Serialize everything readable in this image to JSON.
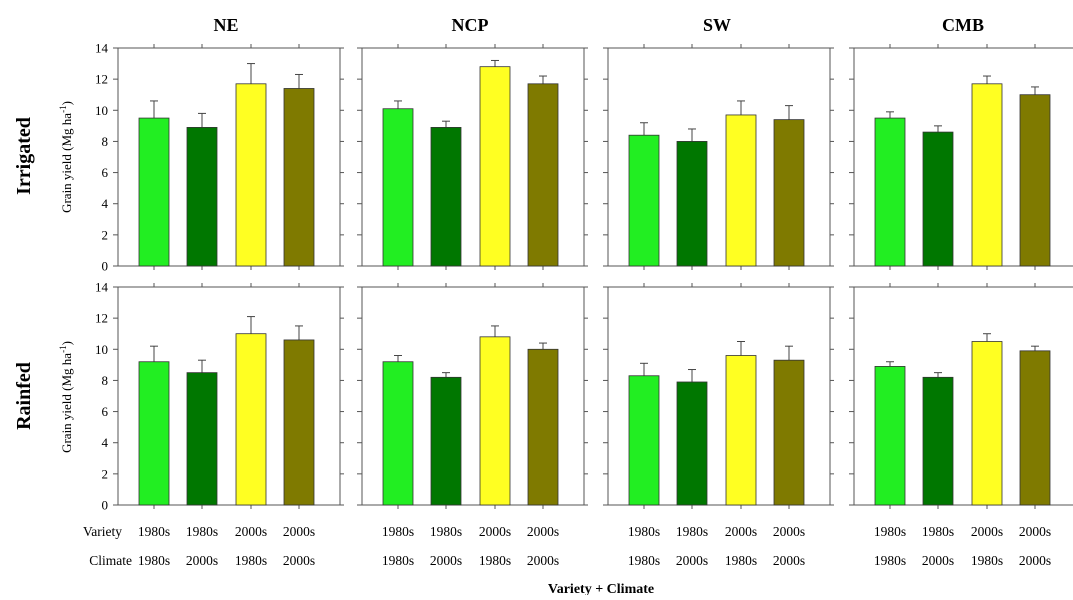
{
  "panel_titles": [
    "NE",
    "NCP",
    "SW",
    "CMB"
  ],
  "row_titles": [
    "Irrigated",
    "Rainfed"
  ],
  "ylabel": "Grain yield (Mg ha",
  "ylabel_sup": "-1",
  "ylabel_close": ")",
  "xlabel": "Variety + Climate",
  "x_row_labels": [
    "Variety",
    "Climate"
  ],
  "bar_colors": [
    "#22ee22",
    "#007700",
    "#ffff22",
    "#7f7a00"
  ],
  "chart_data": {
    "type": "bar",
    "ylim": [
      0,
      14
    ],
    "yticks": [
      0,
      2,
      4,
      6,
      8,
      10,
      12,
      14
    ],
    "categories": [
      {
        "variety": "1980s",
        "climate": "1980s"
      },
      {
        "variety": "1980s",
        "climate": "2000s"
      },
      {
        "variety": "2000s",
        "climate": "1980s"
      },
      {
        "variety": "2000s",
        "climate": "2000s"
      }
    ],
    "panels": [
      {
        "row": "Irrigated",
        "region": "NE",
        "values": [
          9.5,
          8.9,
          11.7,
          11.4
        ],
        "errors": [
          1.1,
          0.9,
          1.3,
          0.9
        ]
      },
      {
        "row": "Irrigated",
        "region": "NCP",
        "values": [
          10.1,
          8.9,
          12.8,
          11.7
        ],
        "errors": [
          0.5,
          0.4,
          0.4,
          0.5
        ]
      },
      {
        "row": "Irrigated",
        "region": "SW",
        "values": [
          8.4,
          8.0,
          9.7,
          9.4
        ],
        "errors": [
          0.8,
          0.8,
          0.9,
          0.9
        ]
      },
      {
        "row": "Irrigated",
        "region": "CMB",
        "values": [
          9.5,
          8.6,
          11.7,
          11.0
        ],
        "errors": [
          0.4,
          0.4,
          0.5,
          0.5
        ]
      },
      {
        "row": "Rainfed",
        "region": "NE",
        "values": [
          9.2,
          8.5,
          11.0,
          10.6
        ],
        "errors": [
          1.0,
          0.8,
          1.1,
          0.9
        ]
      },
      {
        "row": "Rainfed",
        "region": "NCP",
        "values": [
          9.2,
          8.2,
          10.8,
          10.0
        ],
        "errors": [
          0.4,
          0.3,
          0.7,
          0.4
        ]
      },
      {
        "row": "Rainfed",
        "region": "SW",
        "values": [
          8.3,
          7.9,
          9.6,
          9.3
        ],
        "errors": [
          0.8,
          0.8,
          0.9,
          0.9
        ]
      },
      {
        "row": "Rainfed",
        "region": "CMB",
        "values": [
          8.9,
          8.2,
          10.5,
          9.9
        ],
        "errors": [
          0.3,
          0.3,
          0.5,
          0.3
        ]
      }
    ]
  }
}
